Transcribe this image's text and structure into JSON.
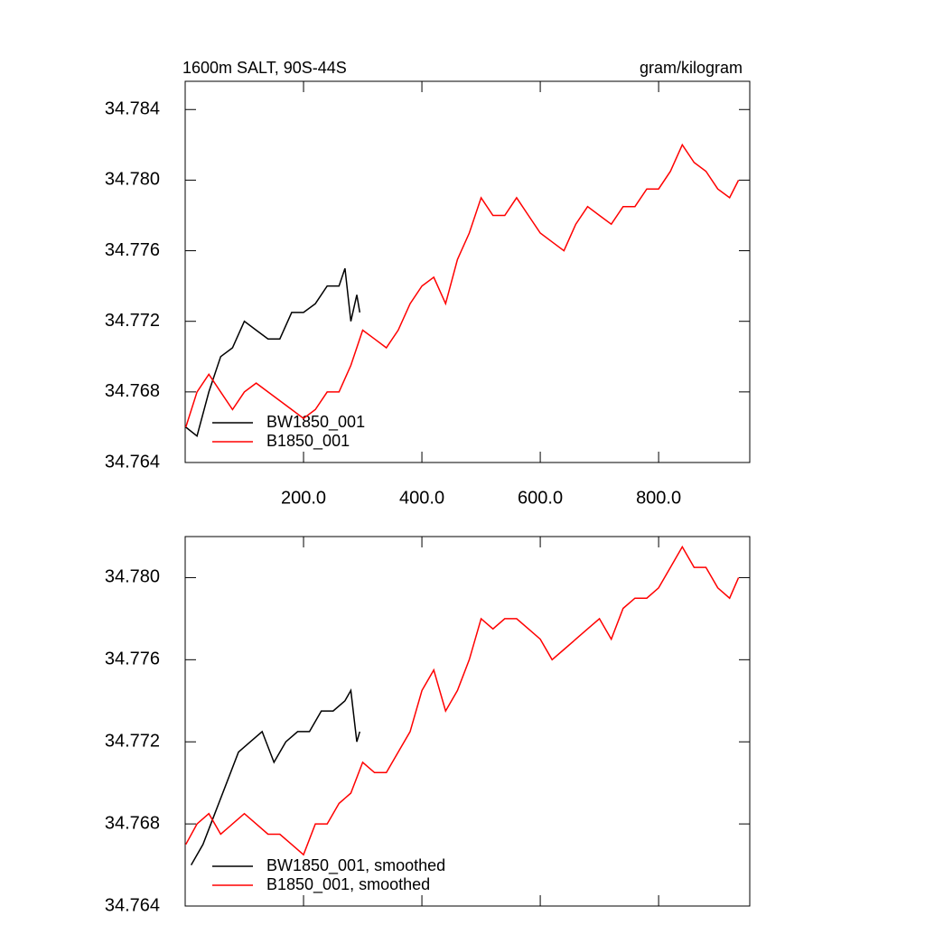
{
  "chart_data": [
    {
      "type": "line",
      "title": "1600m SALT, 90S-44S",
      "subtitle": "gram/kilogram",
      "xlim": [
        0,
        954
      ],
      "ylim": [
        34.764,
        34.7856
      ],
      "xticks": [
        {
          "value": 200,
          "label": "200.0"
        },
        {
          "value": 400,
          "label": "400.0"
        },
        {
          "value": 600,
          "label": "600.0"
        },
        {
          "value": 800,
          "label": "800.0"
        }
      ],
      "yticks": [
        34.764,
        34.768,
        34.772,
        34.776,
        {
          "value": 34.78,
          "label": "34.780"
        },
        34.784
      ],
      "legend": "lower left",
      "series": [
        {
          "name": "BW1850_001",
          "color": "#000000",
          "x": [
            1,
            20,
            40,
            60,
            80,
            100,
            120,
            140,
            160,
            180,
            200,
            220,
            240,
            260,
            270,
            280,
            290,
            295
          ],
          "values": [
            34.766,
            34.7655,
            34.768,
            34.77,
            34.7705,
            34.772,
            34.7715,
            34.771,
            34.771,
            34.7725,
            34.7725,
            34.773,
            34.774,
            34.774,
            34.775,
            34.772,
            34.7735,
            34.7725
          ]
        },
        {
          "name": "B1850_001",
          "color": "#ff0000",
          "x": [
            1,
            20,
            40,
            60,
            80,
            100,
            120,
            140,
            160,
            180,
            200,
            220,
            240,
            260,
            280,
            300,
            320,
            340,
            360,
            380,
            400,
            420,
            440,
            460,
            480,
            500,
            520,
            540,
            560,
            580,
            600,
            620,
            640,
            660,
            680,
            700,
            720,
            740,
            760,
            780,
            800,
            820,
            840,
            860,
            880,
            900,
            920,
            935
          ],
          "values": [
            34.766,
            34.768,
            34.769,
            34.768,
            34.767,
            34.768,
            34.7685,
            34.768,
            34.7675,
            34.767,
            34.7665,
            34.767,
            34.768,
            34.768,
            34.7695,
            34.7715,
            34.771,
            34.7705,
            34.7715,
            34.773,
            34.774,
            34.7745,
            34.773,
            34.7755,
            34.777,
            34.779,
            34.778,
            34.778,
            34.779,
            34.778,
            34.777,
            34.7765,
            34.776,
            34.7775,
            34.7785,
            34.778,
            34.7775,
            34.7785,
            34.7785,
            34.7795,
            34.7795,
            34.7805,
            34.782,
            34.781,
            34.7805,
            34.7795,
            34.779,
            34.78
          ]
        }
      ]
    },
    {
      "type": "line",
      "xlim": [
        0,
        954
      ],
      "ylim": [
        34.764,
        34.782
      ],
      "xticks": [
        200,
        400,
        600,
        800
      ],
      "yticks": [
        34.764,
        34.768,
        34.772,
        34.776,
        {
          "value": 34.78,
          "label": "34.780"
        }
      ],
      "legend": "lower left",
      "series": [
        {
          "name": "BW1850_001, smoothed",
          "color": "#000000",
          "x": [
            10,
            30,
            50,
            70,
            90,
            110,
            130,
            150,
            170,
            190,
            210,
            230,
            250,
            270,
            280,
            290,
            295
          ],
          "values": [
            34.766,
            34.767,
            34.7685,
            34.77,
            34.7715,
            34.772,
            34.7725,
            34.771,
            34.772,
            34.7725,
            34.7725,
            34.7735,
            34.7735,
            34.774,
            34.7745,
            34.772,
            34.7725
          ]
        },
        {
          "name": "B1850_001, smoothed",
          "color": "#ff0000",
          "x": [
            1,
            20,
            40,
            60,
            80,
            100,
            120,
            140,
            160,
            180,
            200,
            220,
            240,
            260,
            280,
            300,
            320,
            340,
            360,
            380,
            400,
            420,
            440,
            460,
            480,
            500,
            520,
            540,
            560,
            580,
            600,
            620,
            640,
            660,
            680,
            700,
            720,
            740,
            760,
            780,
            800,
            820,
            840,
            860,
            880,
            900,
            920,
            935
          ],
          "values": [
            34.767,
            34.768,
            34.7685,
            34.7675,
            34.768,
            34.7685,
            34.768,
            34.7675,
            34.7675,
            34.767,
            34.7665,
            34.768,
            34.768,
            34.769,
            34.7695,
            34.771,
            34.7705,
            34.7705,
            34.7715,
            34.7725,
            34.7745,
            34.7755,
            34.7735,
            34.7745,
            34.776,
            34.778,
            34.7775,
            34.778,
            34.778,
            34.7775,
            34.777,
            34.776,
            34.7765,
            34.777,
            34.7775,
            34.778,
            34.777,
            34.7785,
            34.779,
            34.779,
            34.7795,
            34.7805,
            34.7815,
            34.7805,
            34.7805,
            34.7795,
            34.779,
            34.78
          ]
        }
      ]
    }
  ]
}
